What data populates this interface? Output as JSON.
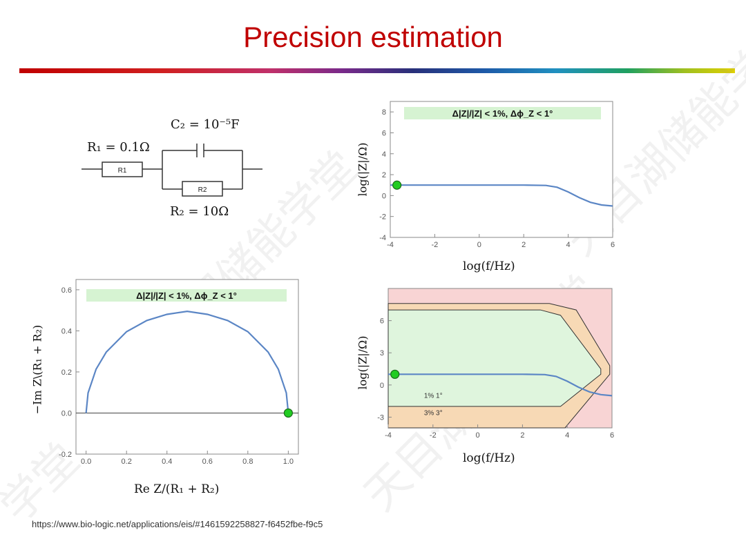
{
  "slide": {
    "title": "Precision estimation",
    "footer_url": "https://www.bio-logic.net/applications/eis/#1461592258827-f6452fbe-f9c5",
    "watermarks": [
      "天目湖储能学堂",
      "天目湖储能学堂",
      "学堂",
      "天目湖储能学堂"
    ]
  },
  "circuit": {
    "r1_box": "R1",
    "r2_box": "R2",
    "r1_label": "R₁ = 0.1Ω",
    "c2_label": "C₂ = 10⁻⁵F",
    "r2_label": "R₂ = 10Ω"
  },
  "chart_data": [
    {
      "id": "bode-magnitude",
      "type": "line",
      "banner": "Δ|Z|/|Z| < 1%,  Δϕ_Z < 1°",
      "xlabel": "log(f/Hz)",
      "ylabel": "log(|Z|/Ω)",
      "xlim": [
        -4,
        6
      ],
      "ylim": [
        -4,
        9
      ],
      "xticks": [
        -4,
        -2,
        0,
        2,
        4,
        6
      ],
      "yticks": [
        -4,
        -2,
        0,
        2,
        4,
        6,
        8
      ],
      "series": [
        {
          "x": [
            -4,
            -2,
            0,
            2,
            3,
            3.5,
            4,
            4.5,
            5,
            5.5,
            6
          ],
          "y": [
            1.0,
            1.0,
            1.0,
            1.0,
            0.97,
            0.8,
            0.35,
            -0.2,
            -0.65,
            -0.9,
            -1.0
          ]
        }
      ],
      "marker": {
        "x": -3.7,
        "y": 1.0,
        "color": "#22cc22"
      }
    },
    {
      "id": "nyquist",
      "type": "line",
      "banner": "Δ|Z|/|Z| < 1%,  Δϕ_Z < 1°",
      "xlabel": "Re Z/(R₁ + R₂)",
      "ylabel": "−Im Z\\(R₁ + R₂)",
      "xlim": [
        -0.05,
        1.05
      ],
      "ylim": [
        -0.2,
        0.65
      ],
      "xticks": [
        0.0,
        0.2,
        0.4,
        0.6,
        0.8,
        1.0
      ],
      "yticks": [
        -0.2,
        0.0,
        0.2,
        0.4,
        0.6
      ],
      "series": [
        {
          "x": [
            0.0,
            0.0099,
            0.0495,
            0.1,
            0.2,
            0.3,
            0.4,
            0.5,
            0.6,
            0.7,
            0.8,
            0.9,
            0.9505,
            0.9901,
            1.0
          ],
          "y": [
            0.0,
            0.0977,
            0.2135,
            0.297,
            0.396,
            0.4505,
            0.4802,
            0.495,
            0.4802,
            0.4505,
            0.396,
            0.297,
            0.2135,
            0.0977,
            0.0
          ]
        }
      ],
      "marker": {
        "x": 1.0,
        "y": 0.0,
        "color": "#22cc22"
      }
    },
    {
      "id": "precision-map",
      "type": "area",
      "xlabel": "log(f/Hz)",
      "ylabel": "log(|Z|/Ω)",
      "xlim": [
        -4,
        6
      ],
      "ylim": [
        -4,
        9
      ],
      "xticks": [
        -4,
        -2,
        0,
        2,
        4,
        6
      ],
      "yticks": [
        -3,
        0,
        3,
        6
      ],
      "zone_labels": [
        "1% 1°",
        "3% 3°"
      ],
      "colors": {
        "outside": "#f8d4d4",
        "band_3pct": "#f7d9b5",
        "region_1pct": "#dff5dd",
        "curve": "#6a8fc8"
      },
      "region_3pct": {
        "x": [
          -4,
          3.2,
          4.4,
          5.9,
          5.9,
          3.9,
          -4
        ],
        "y": [
          7.6,
          7.6,
          7.0,
          1.8,
          1.0,
          -4.0,
          -4.0
        ]
      },
      "region_1pct": {
        "x": [
          -4,
          2.8,
          3.7,
          5.5,
          5.5,
          3.7,
          -4
        ],
        "y": [
          7.0,
          7.0,
          6.5,
          1.5,
          1.0,
          -2.0,
          -2.0
        ]
      },
      "series": [
        {
          "x": [
            -4,
            -2,
            0,
            2,
            3,
            3.5,
            4,
            4.5,
            5,
            5.5,
            6
          ],
          "y": [
            1.0,
            1.0,
            1.0,
            1.0,
            0.97,
            0.8,
            0.35,
            -0.2,
            -0.65,
            -0.9,
            -1.0
          ]
        }
      ],
      "marker": {
        "x": -3.7,
        "y": 1.0,
        "color": "#22cc22"
      }
    }
  ]
}
